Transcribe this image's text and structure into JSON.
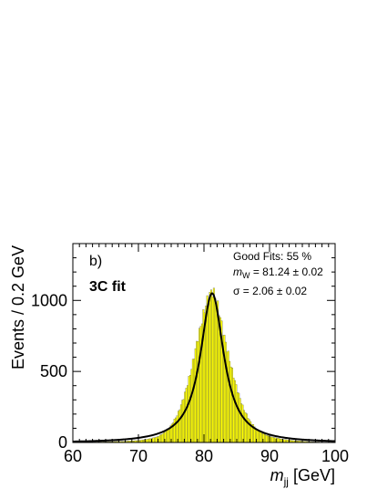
{
  "chart_data": {
    "type": "bar",
    "title": "",
    "xlabel": "m_jj [GeV]",
    "xlabel_main": "m",
    "xlabel_sub": "jj",
    "xlabel_rest": " [GeV]",
    "ylabel": "Events / 0.2 GeV",
    "xlim": [
      60,
      100
    ],
    "ylim": [
      0,
      1400
    ],
    "xticks": [
      60,
      70,
      80,
      90,
      100
    ],
    "yticks": [
      0,
      500,
      1000
    ],
    "bin_width": 0.2,
    "fill_color": "#ffff00",
    "fit_color": "#000000",
    "panel_label": "b)",
    "fit_label": "3C fit",
    "annotations": {
      "good_fits": "Good Fits: 55 %",
      "mw_prefix": "m",
      "mw_sub": "W",
      "mw_rest": " = 81.24 ± 0.02",
      "sigma": "σ =  2.06 ± 0.02"
    },
    "fit": {
      "mean": 81.24,
      "sigma": 2.06,
      "peak": 1050
    },
    "x": [
      60,
      62,
      64,
      66,
      68,
      70,
      71,
      72,
      73,
      74,
      75,
      76,
      77,
      78,
      79,
      80,
      80.5,
      81,
      81.24,
      81.5,
      82,
      82.5,
      83,
      84,
      85,
      86,
      87,
      88,
      89,
      90,
      92,
      94,
      96,
      98,
      100
    ],
    "values": [
      2,
      3,
      4,
      6,
      9,
      14,
      20,
      28,
      42,
      70,
      120,
      200,
      330,
      500,
      720,
      920,
      1000,
      1050,
      1070,
      1050,
      980,
      880,
      760,
      560,
      380,
      240,
      150,
      95,
      62,
      42,
      22,
      12,
      6,
      3,
      1
    ]
  }
}
